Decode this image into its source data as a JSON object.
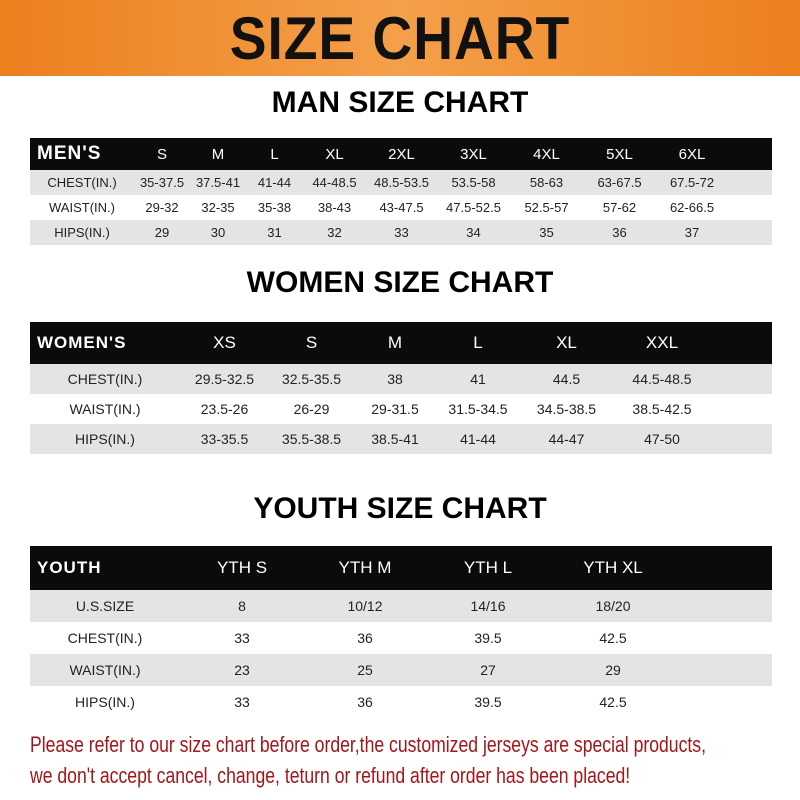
{
  "banner_title": "SIZE CHART",
  "men": {
    "title": "MAN SIZE CHART",
    "header": [
      "MEN'S",
      "S",
      "M",
      "L",
      "XL",
      "2XL",
      "3XL",
      "4XL",
      "5XL",
      "6XL"
    ],
    "rows": [
      [
        "CHEST(IN.)",
        "35-37.5",
        "37.5-41",
        "41-44",
        "44-48.5",
        "48.5-53.5",
        "53.5-58",
        "58-63",
        "63-67.5",
        "67.5-72"
      ],
      [
        "WAIST(IN.)",
        "29-32",
        "32-35",
        "35-38",
        "38-43",
        "43-47.5",
        "47.5-52.5",
        "52.5-57",
        "57-62",
        "62-66.5"
      ],
      [
        "HIPS(IN.)",
        "29",
        "30",
        "31",
        "32",
        "33",
        "34",
        "35",
        "36",
        "37"
      ]
    ]
  },
  "women": {
    "title": "WOMEN SIZE CHART",
    "header": [
      "WOMEN'S",
      "XS",
      "S",
      "M",
      "L",
      "XL",
      "XXL"
    ],
    "rows": [
      [
        "CHEST(IN.)",
        "29.5-32.5",
        "32.5-35.5",
        "38",
        "41",
        "44.5",
        "44.5-48.5"
      ],
      [
        "WAIST(IN.)",
        "23.5-26",
        "26-29",
        "29-31.5",
        "31.5-34.5",
        "34.5-38.5",
        "38.5-42.5"
      ],
      [
        "HIPS(IN.)",
        "33-35.5",
        "35.5-38.5",
        "38.5-41",
        "41-44",
        "44-47",
        "47-50"
      ]
    ]
  },
  "youth": {
    "title": "YOUTH SIZE CHART",
    "header": [
      "YOUTH",
      "YTH S",
      "YTH M",
      "YTH L",
      "YTH XL"
    ],
    "rows": [
      [
        "U.S.SIZE",
        "8",
        "10/12",
        "14/16",
        "18/20"
      ],
      [
        "CHEST(IN.)",
        "33",
        "36",
        "39.5",
        "42.5"
      ],
      [
        "WAIST(IN.)",
        "23",
        "25",
        "27",
        "29"
      ],
      [
        "HIPS(IN.)",
        "33",
        "36",
        "39.5",
        "42.5"
      ]
    ]
  },
  "notice": {
    "line1": "Please refer to our size chart before order,the customized jerseys are special products,",
    "line2": "we don't accept cancel, change, teturn or refund after order has been placed!"
  },
  "colors": {
    "banner": "#ec7f1e",
    "header_row": "#0b0b0b",
    "stripe": "#e4e4e4",
    "notice": "#a3161a"
  }
}
